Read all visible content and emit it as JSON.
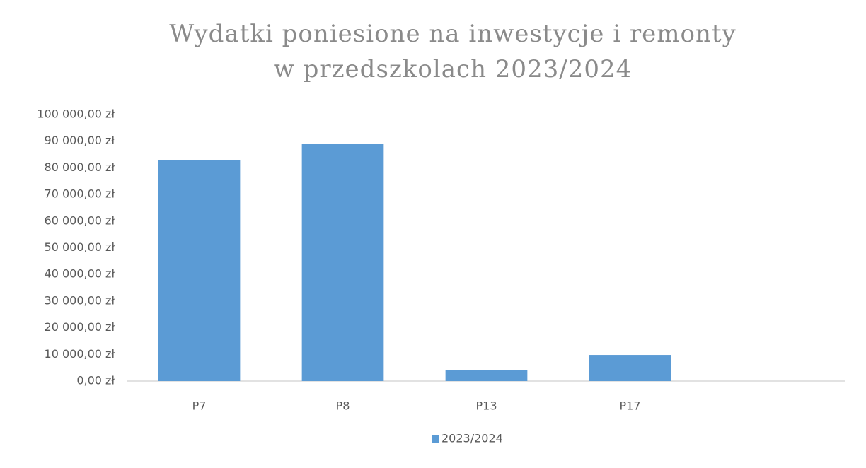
{
  "chart_data": {
    "type": "bar",
    "title": [
      "Wydatki poniesione na inwestycje i remonty",
      "w przedszkolach 2023/2024"
    ],
    "categories": [
      "P7",
      "P8",
      "P13",
      "P17",
      null
    ],
    "series": [
      {
        "name": "2023/2024",
        "color": "#5b9bd5",
        "values": [
          83000,
          89000,
          4000,
          9800,
          null
        ]
      }
    ],
    "ylim": [
      0,
      100000
    ],
    "yticks": [
      {
        "value": 0,
        "label": "0,00 zł"
      },
      {
        "value": 10000,
        "label": "10 000,00 zł"
      },
      {
        "value": 20000,
        "label": "20 000,00 zł"
      },
      {
        "value": 30000,
        "label": "30 000,00 zł"
      },
      {
        "value": 40000,
        "label": "40 000,00 zł"
      },
      {
        "value": 50000,
        "label": "50 000,00 zł"
      },
      {
        "value": 60000,
        "label": "60 000,00 zł"
      },
      {
        "value": 70000,
        "label": "70 000,00 zł"
      },
      {
        "value": 80000,
        "label": "80 000,00 zł"
      },
      {
        "value": 90000,
        "label": "90 000,00 zł"
      },
      {
        "value": 100000,
        "label": "100 000,00 zł"
      }
    ],
    "grid": false,
    "legend": "bottom"
  }
}
